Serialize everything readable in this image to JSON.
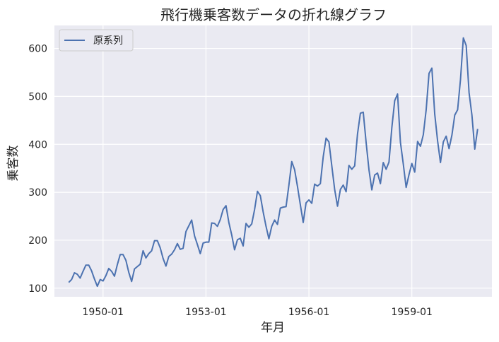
{
  "chart_data": {
    "type": "line",
    "title": "飛行機乗客数データの折れ線グラフ",
    "xlabel": "年月",
    "ylabel": "乗客数",
    "x_start": "1949-01",
    "x_end": "1960-12",
    "x_frequency": "monthly",
    "xlim": [
      "1948-08",
      "1961-05"
    ],
    "ylim": [
      82,
      648
    ],
    "xticks": [
      "1950-01",
      "1953-01",
      "1956-01",
      "1959-01"
    ],
    "yticks": [
      100,
      200,
      300,
      400,
      500,
      600
    ],
    "grid": true,
    "legend": {
      "placement": "top-left"
    },
    "series": [
      {
        "name": "原系列",
        "color": "#4c72b0",
        "values": [
          112,
          118,
          132,
          129,
          121,
          135,
          148,
          148,
          136,
          119,
          104,
          118,
          115,
          126,
          141,
          135,
          125,
          149,
          170,
          170,
          158,
          133,
          114,
          140,
          145,
          150,
          178,
          163,
          172,
          178,
          199,
          199,
          184,
          162,
          146,
          166,
          171,
          180,
          193,
          181,
          183,
          218,
          230,
          242,
          209,
          191,
          172,
          194,
          196,
          196,
          236,
          235,
          229,
          243,
          264,
          272,
          237,
          211,
          180,
          201,
          204,
          188,
          235,
          227,
          234,
          264,
          302,
          293,
          259,
          229,
          203,
          229,
          242,
          233,
          267,
          269,
          270,
          315,
          364,
          347,
          312,
          274,
          237,
          278,
          284,
          277,
          317,
          313,
          318,
          374,
          413,
          405,
          355,
          306,
          271,
          306,
          315,
          301,
          356,
          348,
          355,
          422,
          465,
          467,
          404,
          347,
          305,
          336,
          340,
          318,
          362,
          348,
          363,
          435,
          491,
          505,
          404,
          359,
          310,
          337,
          360,
          342,
          406,
          396,
          420,
          472,
          548,
          559,
          463,
          407,
          362,
          405,
          417,
          391,
          419,
          461,
          472,
          535,
          622,
          606,
          508,
          461,
          390,
          432
        ]
      }
    ],
    "colors": {
      "plot_background": "#eaeaf2",
      "grid": "#ffffff",
      "text": "#262626"
    }
  }
}
